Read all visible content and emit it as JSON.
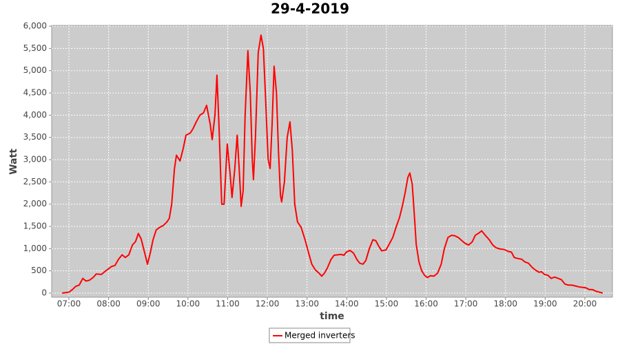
{
  "chart_data": {
    "type": "line",
    "title": "29-4-2019",
    "x_label": "time",
    "y_label": "Watt",
    "xlim": [
      6.566,
      20.694
    ],
    "ylim": [
      -93,
      6017
    ],
    "xticks": [
      {
        "value": 7,
        "label": "07:00"
      },
      {
        "value": 8,
        "label": "08:00"
      },
      {
        "value": 9,
        "label": "09:00"
      },
      {
        "value": 10,
        "label": "10:00"
      },
      {
        "value": 11,
        "label": "11:00"
      },
      {
        "value": 12,
        "label": "12:00"
      },
      {
        "value": 13,
        "label": "13:00"
      },
      {
        "value": 14,
        "label": "14:00"
      },
      {
        "value": 15,
        "label": "15:00"
      },
      {
        "value": 16,
        "label": "16:00"
      },
      {
        "value": 17,
        "label": "17:00"
      },
      {
        "value": 18,
        "label": "18:00"
      },
      {
        "value": 19,
        "label": "19:00"
      },
      {
        "value": 20,
        "label": "20:00"
      }
    ],
    "yticks": [
      0,
      500,
      {
        "value": 1000,
        "label": "1,000"
      },
      {
        "value": 1500,
        "label": "1,500"
      },
      {
        "value": 2000,
        "label": "2,000"
      },
      {
        "value": 2500,
        "label": "2,500"
      },
      {
        "value": 3000,
        "label": "3,000"
      },
      {
        "value": 3500,
        "label": "3,500"
      },
      {
        "value": 4000,
        "label": "4,000"
      },
      {
        "value": 4500,
        "label": "4,500"
      },
      {
        "value": 5000,
        "label": "5,000"
      },
      {
        "value": 5500,
        "label": "5,500"
      },
      {
        "value": 6000,
        "label": "6,000"
      }
    ],
    "grid": true,
    "legend": "bottom",
    "x": [
      6.83,
      6.91,
      7.0,
      7.09,
      7.17,
      7.26,
      7.35,
      7.43,
      7.52,
      7.61,
      7.69,
      7.82,
      7.9,
      7.99,
      8.08,
      8.16,
      8.25,
      8.34,
      8.42,
      8.51,
      8.6,
      8.68,
      8.75,
      8.82,
      8.91,
      8.98,
      9.05,
      9.12,
      9.2,
      9.29,
      9.38,
      9.47,
      9.53,
      9.59,
      9.66,
      9.71,
      9.8,
      9.88,
      9.95,
      10.06,
      10.13,
      10.21,
      10.3,
      10.39,
      10.47,
      10.56,
      10.61,
      10.68,
      10.73,
      10.78,
      10.85,
      10.91,
      10.99,
      11.06,
      11.11,
      11.18,
      11.24,
      11.29,
      11.34,
      11.39,
      11.44,
      11.51,
      11.57,
      11.62,
      11.65,
      11.7,
      11.77,
      11.84,
      11.9,
      11.95,
      12.02,
      12.07,
      12.12,
      12.17,
      12.23,
      12.28,
      12.33,
      12.36,
      12.43,
      12.5,
      12.57,
      12.63,
      12.69,
      12.76,
      12.85,
      12.95,
      13.04,
      13.12,
      13.21,
      13.3,
      13.37,
      13.44,
      13.51,
      13.6,
      13.68,
      13.77,
      13.86,
      13.93,
      13.99,
      14.08,
      14.17,
      14.26,
      14.33,
      14.41,
      14.48,
      14.57,
      14.66,
      14.73,
      14.81,
      14.88,
      14.99,
      15.07,
      15.16,
      15.25,
      15.33,
      15.4,
      15.47,
      15.54,
      15.59,
      15.65,
      15.7,
      15.75,
      15.82,
      15.89,
      15.96,
      16.03,
      16.11,
      16.2,
      16.29,
      16.38,
      16.46,
      16.55,
      16.64,
      16.72,
      16.81,
      16.9,
      16.98,
      17.07,
      17.16,
      17.24,
      17.33,
      17.4,
      17.49,
      17.59,
      17.68,
      17.76,
      17.87,
      17.97,
      18.06,
      18.15,
      18.22,
      18.3,
      18.41,
      18.49,
      18.58,
      18.67,
      18.75,
      18.84,
      18.91,
      18.98,
      19.07,
      19.15,
      19.24,
      19.33,
      19.41,
      19.5,
      19.59,
      19.67,
      19.76,
      19.85,
      19.93,
      20.02,
      20.11,
      20.19,
      20.28,
      20.37,
      20.45
    ],
    "series": [
      {
        "name": "Merged inverters",
        "color": "#ff0000",
        "values": [
          0,
          10,
          20,
          80,
          150,
          180,
          330,
          270,
          290,
          350,
          430,
          420,
          480,
          540,
          600,
          620,
          760,
          860,
          800,
          860,
          1080,
          1160,
          1340,
          1220,
          900,
          650,
          900,
          1200,
          1420,
          1480,
          1520,
          1600,
          1680,
          2000,
          2800,
          3100,
          2970,
          3250,
          3550,
          3600,
          3700,
          3850,
          4000,
          4050,
          4220,
          3800,
          3450,
          4000,
          4900,
          3800,
          2000,
          2000,
          3350,
          2700,
          2150,
          2800,
          3550,
          2800,
          1950,
          2300,
          4000,
          5450,
          4500,
          3000,
          2550,
          3500,
          5400,
          5800,
          5500,
          4500,
          3000,
          2800,
          3800,
          5100,
          4500,
          3200,
          2200,
          2050,
          2500,
          3500,
          3850,
          3200,
          2000,
          1600,
          1480,
          1200,
          900,
          650,
          520,
          450,
          380,
          450,
          560,
          750,
          850,
          860,
          870,
          850,
          920,
          960,
          900,
          750,
          670,
          650,
          730,
          1000,
          1200,
          1180,
          1050,
          950,
          970,
          1100,
          1250,
          1500,
          1700,
          1950,
          2250,
          2600,
          2700,
          2450,
          1800,
          1100,
          700,
          500,
          400,
          350,
          390,
          380,
          450,
          650,
          1000,
          1250,
          1300,
          1290,
          1250,
          1180,
          1120,
          1080,
          1150,
          1300,
          1350,
          1400,
          1300,
          1200,
          1080,
          1020,
          990,
          980,
          940,
          920,
          800,
          780,
          760,
          700,
          670,
          580,
          520,
          470,
          480,
          420,
          400,
          330,
          360,
          330,
          300,
          200,
          180,
          180,
          160,
          140,
          130,
          120,
          80,
          80,
          40,
          20,
          0
        ]
      }
    ]
  }
}
